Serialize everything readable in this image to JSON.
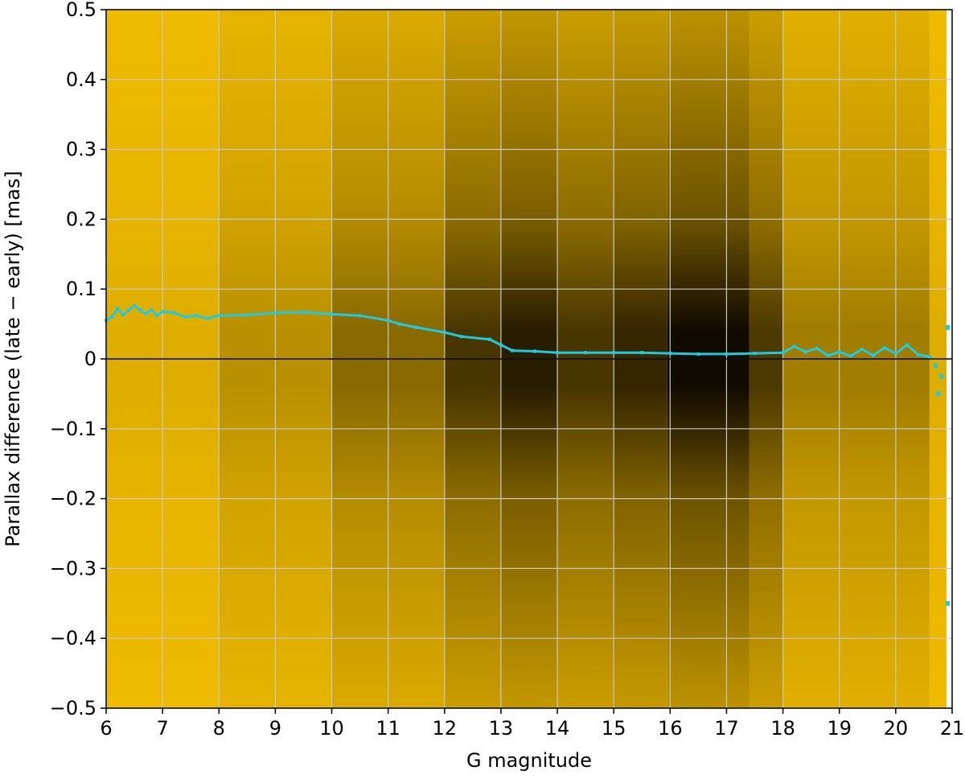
{
  "chart_data": {
    "type": "heatmap",
    "title": "",
    "xlabel": "G magnitude",
    "ylabel": "Parallax difference (late − early) [mas]",
    "xlim": [
      6,
      21
    ],
    "ylim": [
      -0.5,
      0.5
    ],
    "x_ticks": [
      "6",
      "7",
      "8",
      "9",
      "10",
      "11",
      "12",
      "13",
      "14",
      "15",
      "16",
      "17",
      "18",
      "19",
      "20",
      "21"
    ],
    "y_ticks": [
      "0.5",
      "0.4",
      "0.3",
      "0.2",
      "0.1",
      "0",
      "−0.1",
      "−0.2",
      "−0.3",
      "−0.4",
      "−0.5"
    ],
    "grid": true,
    "zero_line": 0,
    "density_description": "2D histogram of sources; darker = more sources",
    "density_colors": {
      "low": "#f5c000",
      "high": "#050000"
    },
    "density_column_profile": [
      {
        "g_min": 6.0,
        "g_max": 8.0,
        "relative_density": 0.1
      },
      {
        "g_min": 8.0,
        "g_max": 10.0,
        "relative_density": 0.25
      },
      {
        "g_min": 10.0,
        "g_max": 12.0,
        "relative_density": 0.45
      },
      {
        "g_min": 12.0,
        "g_max": 13.0,
        "relative_density": 0.72
      },
      {
        "g_min": 13.0,
        "g_max": 14.0,
        "relative_density": 0.85
      },
      {
        "g_min": 14.0,
        "g_max": 15.0,
        "relative_density": 0.72
      },
      {
        "g_min": 15.0,
        "g_max": 15.95,
        "relative_density": 0.8
      },
      {
        "g_min": 15.95,
        "g_max": 17.4,
        "relative_density": 0.95
      },
      {
        "g_min": 17.4,
        "g_max": 18.0,
        "relative_density": 0.7
      },
      {
        "g_min": 18.0,
        "g_max": 20.6,
        "relative_density": 0.35
      },
      {
        "g_min": 20.6,
        "g_max": 20.9,
        "relative_density": 0.1
      }
    ],
    "series": [
      {
        "color": "#22c8e0",
        "x": [
          6.0,
          6.1,
          6.2,
          6.3,
          6.4,
          6.5,
          6.6,
          6.7,
          6.8,
          6.9,
          7.0,
          7.2,
          7.4,
          7.6,
          7.8,
          8.0,
          8.5,
          9.0,
          9.5,
          10.0,
          10.5,
          11.0,
          11.2,
          11.5,
          12.0,
          12.3,
          12.8,
          13.0,
          13.2,
          13.6,
          14.0,
          14.5,
          15.0,
          15.5,
          16.0,
          16.5,
          17.0,
          17.5,
          18.0,
          18.2,
          18.4,
          18.6,
          18.8,
          19.0,
          19.2,
          19.4,
          19.6,
          19.8,
          20.0,
          20.2,
          20.4,
          20.6
        ],
        "values": [
          0.055,
          0.06,
          0.072,
          0.063,
          0.07,
          0.076,
          0.07,
          0.065,
          0.07,
          0.062,
          0.068,
          0.066,
          0.06,
          0.062,
          0.058,
          0.062,
          0.063,
          0.066,
          0.067,
          0.064,
          0.062,
          0.055,
          0.05,
          0.045,
          0.038,
          0.032,
          0.028,
          0.02,
          0.012,
          0.011,
          0.009,
          0.009,
          0.009,
          0.009,
          0.008,
          0.007,
          0.007,
          0.008,
          0.009,
          0.018,
          0.01,
          0.015,
          0.005,
          0.01,
          0.004,
          0.014,
          0.005,
          0.016,
          0.008,
          0.02,
          0.006,
          0.003
        ]
      }
    ],
    "outlier_points": [
      {
        "x": 20.7,
        "y": -0.01
      },
      {
        "x": 20.75,
        "y": -0.05
      },
      {
        "x": 20.8,
        "y": -0.025
      },
      {
        "x": 21.0,
        "y": 0.045
      },
      {
        "x": 21.0,
        "y": -0.35
      }
    ]
  }
}
